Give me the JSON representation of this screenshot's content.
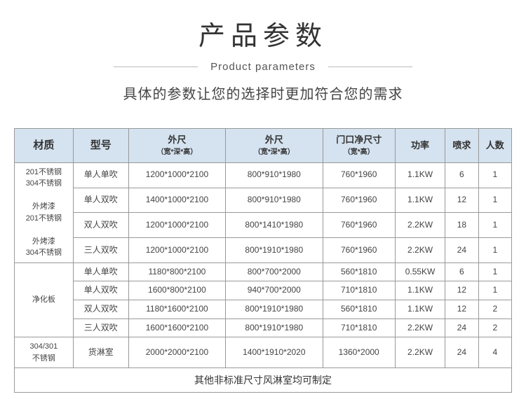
{
  "header": {
    "title": "产品参数",
    "subtitle_en": "Product parameters",
    "description": "具体的参数让您的选择时更加符合您的需求"
  },
  "table": {
    "columns": {
      "material": "材质",
      "model": "型号",
      "outer1": "外尺",
      "outer1_sub": "（宽*深*高）",
      "outer2": "外尺",
      "outer2_sub": "（宽*深*高）",
      "door": "门口净尺寸",
      "door_sub": "（宽*高）",
      "power": "功率",
      "nozzle": "喷求",
      "persons": "人数"
    },
    "group1": {
      "material": "201不锈钢\n304不锈钢\n\n外烤漆\n201不锈钢\n\n外烤漆\n304不锈钢",
      "rows": [
        {
          "model": "单人单吹",
          "d1": "1200*1000*2100",
          "d2": "800*910*1980",
          "d3": "760*1960",
          "power": "1.1KW",
          "nozzle": "6",
          "persons": "1"
        },
        {
          "model": "单人双吹",
          "d1": "1400*1000*2100",
          "d2": "800*910*1980",
          "d3": "760*1960",
          "power": "1.1KW",
          "nozzle": "12",
          "persons": "1"
        },
        {
          "model": "双人双吹",
          "d1": "1200*1000*2100",
          "d2": "800*1410*1980",
          "d3": "760*1960",
          "power": "2.2KW",
          "nozzle": "18",
          "persons": "1"
        },
        {
          "model": "三人双吹",
          "d1": "1200*1000*2100",
          "d2": "800*1910*1980",
          "d3": "760*1960",
          "power": "2.2KW",
          "nozzle": "24",
          "persons": "1"
        }
      ]
    },
    "group2": {
      "material": "净化板",
      "rows": [
        {
          "model": "单人单吹",
          "d1": "1180*800*2100",
          "d2": "800*700*2000",
          "d3": "560*1810",
          "power": "0.55KW",
          "nozzle": "6",
          "persons": "1"
        },
        {
          "model": "单人双吹",
          "d1": "1600*800*2100",
          "d2": "940*700*2000",
          "d3": "710*1810",
          "power": "1.1KW",
          "nozzle": "12",
          "persons": "1"
        },
        {
          "model": "双人双吹",
          "d1": "1180*1600*2100",
          "d2": "800*1910*1980",
          "d3": "560*1810",
          "power": "1.1KW",
          "nozzle": "12",
          "persons": "2"
        },
        {
          "model": "三人双吹",
          "d1": "1600*1600*2100",
          "d2": "800*1910*1980",
          "d3": "710*1810",
          "power": "2.2KW",
          "nozzle": "24",
          "persons": "2"
        }
      ]
    },
    "group3": {
      "material": "304/301\n不锈钢",
      "rows": [
        {
          "model": "货淋室",
          "d1": "2000*2000*2100",
          "d2": "1400*1910*2020",
          "d3": "1360*2000",
          "power": "2.2KW",
          "nozzle": "24",
          "persons": "4"
        }
      ]
    },
    "footer": "其他非标准尺寸风淋室均可制定"
  },
  "style": {
    "header_bg": "#d5e2ef",
    "border_color": "#999999",
    "text_color": "#444444",
    "background": "#ffffff"
  }
}
